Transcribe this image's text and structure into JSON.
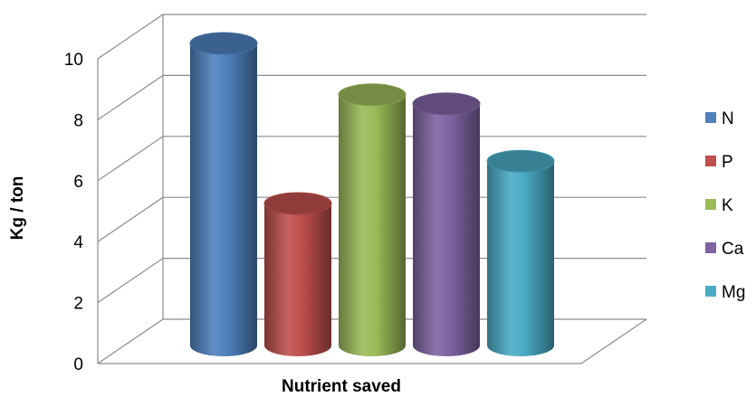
{
  "chart_data": {
    "type": "bar",
    "style": "3d-cylinder",
    "categories": [
      "Nutrient saved"
    ],
    "series": [
      {
        "name": "N",
        "values": [
          10.0
        ],
        "color": "#4F81BD"
      },
      {
        "name": "P",
        "values": [
          4.7
        ],
        "color": "#C0504D"
      },
      {
        "name": "K",
        "values": [
          8.3
        ],
        "color": "#9BBB59"
      },
      {
        "name": "Ca",
        "values": [
          8.0
        ],
        "color": "#8064A2"
      },
      {
        "name": "Mg",
        "values": [
          6.1
        ],
        "color": "#4BACC6"
      }
    ],
    "title": "",
    "xlabel": "Nutrient saved",
    "ylabel": "Kg / ton",
    "ylim": [
      0,
      10
    ],
    "yticks": [
      "0",
      "2",
      "4",
      "6",
      "8",
      "10"
    ],
    "grid": true,
    "legend_position": "right"
  }
}
